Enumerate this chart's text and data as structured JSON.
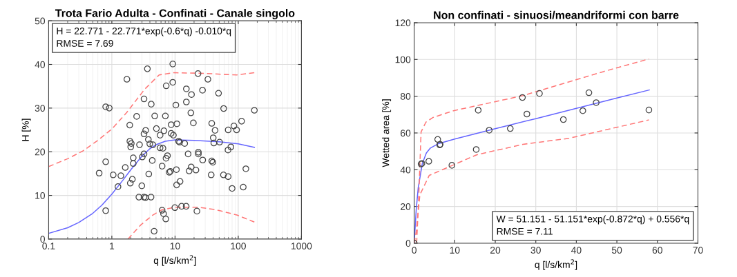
{
  "chart_data": [
    {
      "type": "scatter",
      "title": "Trota Fario Adulta - Confinati - Canale singolo",
      "xlabel": "q [l/s/km$^{2}$]",
      "ylabel": "H [%]",
      "log": "x",
      "grid": true,
      "legend": false,
      "xlim": [
        0.1,
        1000
      ],
      "xticks": [
        0.1,
        1,
        10,
        100,
        1000
      ],
      "ylim": [
        0,
        50
      ],
      "yticks": [
        0,
        10,
        20,
        30,
        40,
        50
      ],
      "annotations": [
        "H = 22.771 - 22.771*exp(-0.6*q) -0.010*q\nRMSE = 7.69"
      ],
      "series": [
        {
          "color": "#444444",
          "marker": "circle",
          "x": [
            0.63,
            0.8,
            0.8,
            1.05,
            1.25,
            1.39,
            1.63,
            1.93,
            2.03,
            1.99,
            2.18,
            2.18,
            2.11,
            1.96,
            2.74,
            3.03,
            3.23,
            3.23,
            3.43,
            2.98,
            2.68,
            3.23,
            3.41,
            4.17,
            3.78,
            3.99,
            4.46,
            4.36,
            3.84,
            5.07,
            5.8,
            5.8,
            6.43,
            6.68,
            6.24,
            7.59,
            7.2,
            8.68,
            9.42,
            8.11,
            8.42,
            10.5,
            10.6,
            12.0,
            11.4,
            11.8,
            14.2,
            16.1,
            18.0,
            16.7,
            21.4,
            23.4,
            23.4,
            27.4,
            38.1,
            39.6,
            37.3,
            40.2,
            41.1,
            50.7,
            58.4,
            69.3,
            68.9,
            76.4,
            80.0,
            120,
            132,
            6.24,
            6.58,
            7.14,
            9.93,
            12.7,
            15.0,
            22.2,
            4.67,
            43.0,
            69.3,
            94.2,
            1.73,
            3.65,
            9.21,
            23.1,
            33.1,
            7.25,
            9.21,
            15.1,
            18.2,
            27.2,
            48.8,
            0.8,
            0.91,
            3.23,
            4.2,
            10.3,
            15.1,
            58.8,
            180,
            2.47,
            4.77,
            7.03,
            17.8,
            1.92,
            8.68,
            10.7,
            19.5,
            38.1,
            85.5,
            113
          ],
          "values": [
            15.1,
            17.7,
            6.5,
            14.7,
            12.0,
            14.5,
            16.4,
            22.4,
            21.9,
            21.1,
            18.6,
            17.3,
            13.7,
            12.8,
            21.6,
            18.8,
            19.5,
            24.1,
            24.9,
            12.2,
            9.6,
            9.6,
            9.5,
            9.6,
            22.8,
            21.8,
            21.6,
            18.0,
            14.9,
            25.3,
            23.8,
            20.9,
            20.8,
            24.8,
            16.7,
            19.1,
            18.5,
            24.2,
            23.8,
            15.3,
            15.5,
            15.9,
            12.4,
            13.2,
            22.4,
            22.2,
            21.9,
            19.5,
            16.5,
            15.6,
            15.8,
            19.9,
            19.5,
            18.1,
            17.9,
            17.6,
            14.7,
            23.2,
            22.0,
            22.2,
            14.7,
            14.3,
            20.4,
            21.1,
            11.6,
            11.9,
            16.1,
            6.6,
            5.8,
            4.6,
            7.2,
            7.5,
            7.5,
            6.4,
            1.8,
            24.9,
            25.0,
            25.0,
            36.6,
            39.0,
            40.1,
            37.9,
            36.6,
            35.1,
            35.9,
            34.4,
            33.1,
            34.1,
            33.4,
            30.3,
            30.0,
            32.1,
            30.9,
            30.7,
            31.4,
            29.9,
            29.5,
            28.1,
            28.2,
            28.2,
            28.9,
            26.1,
            26.2,
            26.4,
            26.6,
            26.5,
            25.9,
            27.0
          ]
        },
        {
          "type": "line",
          "color": "#6666ff",
          "line_style": "solid",
          "x": [
            0.1,
            0.2,
            0.3,
            0.5,
            0.7,
            1,
            1.5,
            2,
            3,
            4,
            5,
            7,
            10,
            20,
            50,
            100,
            180
          ],
          "values": [
            1.3,
            2.6,
            3.8,
            5.9,
            7.8,
            10.3,
            13.5,
            15.9,
            19.0,
            20.7,
            21.6,
            22.4,
            22.7,
            22.6,
            22.3,
            21.8,
            21.0
          ]
        },
        {
          "type": "line",
          "color": "#ff7777",
          "line_style": "dashed",
          "x": [
            0.1,
            0.2,
            0.35,
            0.6,
            1,
            1.7,
            3.3,
            5.6,
            9.4,
            23,
            95,
            180
          ],
          "values": [
            16.6,
            18.4,
            20.2,
            22.6,
            25.2,
            28.9,
            34.3,
            37.6,
            38.1,
            38.0,
            37.6,
            38.1
          ]
        },
        {
          "type": "line",
          "color": "#ff7777",
          "line_style": "dashed",
          "x": [
            1.8,
            2.85,
            4.46,
            6.2,
            10,
            23,
            45,
            95,
            180
          ],
          "values": [
            0,
            3.2,
            5.5,
            6.7,
            7.3,
            7.3,
            6.7,
            5.5,
            3.9
          ]
        }
      ]
    },
    {
      "type": "scatter",
      "title": "Non confinati - sinuosi/meandriformi con barre",
      "xlabel": "q [l/s/km$^{2}$]",
      "ylabel": "Wetted area [%]",
      "grid": true,
      "legend": false,
      "xlim": [
        0,
        70
      ],
      "xticks": [
        0,
        10,
        20,
        30,
        40,
        50,
        60,
        70
      ],
      "ylim": [
        0,
        120
      ],
      "yticks": [
        0,
        20,
        40,
        60,
        80,
        100,
        120
      ],
      "annotations": [
        "W = 51.151 - 51.151*exp(-0.872*q) + 0.556*q\nRMSE = 7.11"
      ],
      "series": [
        {
          "color": "#444444",
          "marker": "circle",
          "x": [
            0,
            1.7,
            1.9,
            3.6,
            5.8,
            6.3,
            6.4,
            9.3,
            15.3,
            18.5,
            15.8,
            23.7,
            26.7,
            27.8,
            30.9,
            36.8,
            41.6,
            43.1,
            44.9,
            57.9
          ],
          "values": [
            0,
            43.1,
            43.4,
            44.6,
            56.5,
            53.5,
            53.8,
            42.4,
            51.0,
            61.5,
            72.4,
            62.4,
            79.3,
            70.3,
            81.5,
            67.3,
            72.1,
            81.9,
            76.5,
            72.5
          ]
        },
        {
          "type": "line",
          "color": "#6666ff",
          "line_style": "solid",
          "x": [
            0,
            0.5,
            1,
            2,
            3,
            4,
            6,
            10,
            20,
            30,
            40,
            50,
            58
          ],
          "values": [
            0,
            18.3,
            30.3,
            43.3,
            49.1,
            51.8,
            54.2,
            56.7,
            62.3,
            67.8,
            73.4,
            79.0,
            83.4
          ]
        },
        {
          "type": "line",
          "color": "#ff7777",
          "line_style": "dashed",
          "x": [
            0.6,
            1.1,
            1.7,
            2.9,
            4.6,
            9.7,
            26.8,
            46.7,
            57.9
          ],
          "values": [
            0,
            23.8,
            60.6,
            65.9,
            68.4,
            72.1,
            80.3,
            93.4,
            100.3
          ]
        },
        {
          "type": "line",
          "color": "#ff7777",
          "line_style": "dashed",
          "x": [
            0,
            0.5,
            1.4,
            3.7,
            5.7,
            15.4,
            26.8,
            38.2,
            57.9
          ],
          "values": [
            0,
            6.3,
            26.3,
            36.9,
            38.8,
            48.1,
            53.8,
            57.1,
            67.1
          ]
        }
      ]
    }
  ]
}
